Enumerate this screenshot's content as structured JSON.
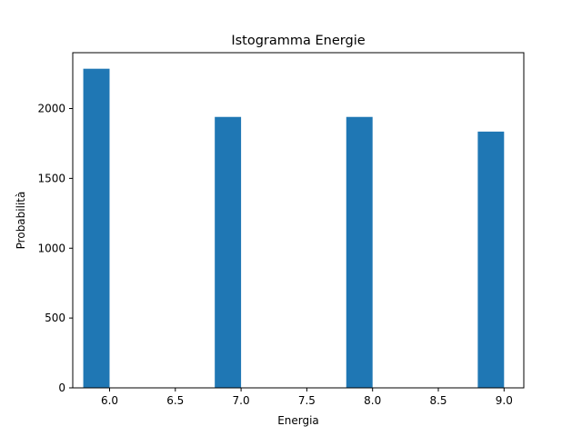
{
  "chart_data": {
    "type": "bar",
    "title": "Istogramma Energie",
    "xlabel": "Energia",
    "ylabel": "Probabilità",
    "xlim": [
      5.72,
      9.15
    ],
    "ylim": [
      0,
      2400
    ],
    "xticks": [
      6.0,
      6.5,
      7.0,
      7.5,
      8.0,
      8.5,
      9.0
    ],
    "xtick_labels": [
      "6.0",
      "6.5",
      "7.0",
      "7.5",
      "8.0",
      "8.5",
      "9.0"
    ],
    "yticks": [
      0,
      500,
      1000,
      1500,
      2000
    ],
    "ytick_labels": [
      "0",
      "500",
      "1000",
      "1500",
      "2000"
    ],
    "bar_width": 0.2,
    "bars": [
      {
        "x_start": 5.8,
        "x_end": 6.0,
        "value": 2285
      },
      {
        "x_start": 6.8,
        "x_end": 7.0,
        "value": 1940
      },
      {
        "x_start": 7.8,
        "x_end": 8.0,
        "value": 1940
      },
      {
        "x_start": 8.8,
        "x_end": 9.0,
        "value": 1835
      }
    ],
    "bar_color": "#1f77b4",
    "grid": false,
    "legend": "none"
  }
}
